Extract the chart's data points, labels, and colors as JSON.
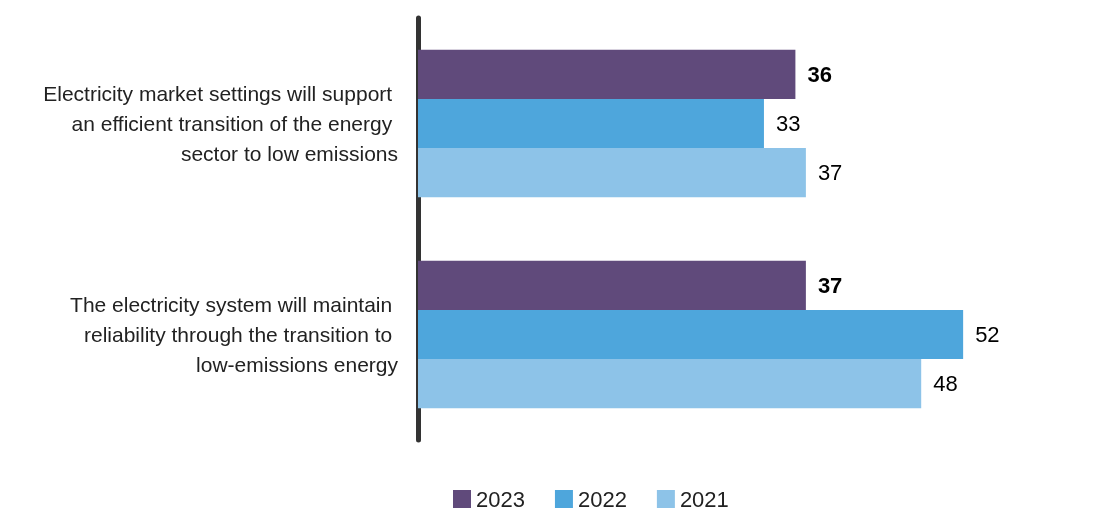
{
  "chart_data": {
    "type": "bar",
    "orientation": "horizontal",
    "categories": [
      "Electricity market settings will support an efficient transition of the energy sector to low emissions",
      "The electricity system will maintain reliability through the transition to low-emissions energy"
    ],
    "series": [
      {
        "name": "2023",
        "color": "#604a7b",
        "values": [
          36,
          37
        ]
      },
      {
        "name": "2022",
        "color": "#4ea6dc",
        "values": [
          33,
          52
        ]
      },
      {
        "name": "2021",
        "color": "#8dc3e8",
        "values": [
          37,
          48
        ]
      }
    ],
    "data_labels": true,
    "legend": "bottom"
  }
}
